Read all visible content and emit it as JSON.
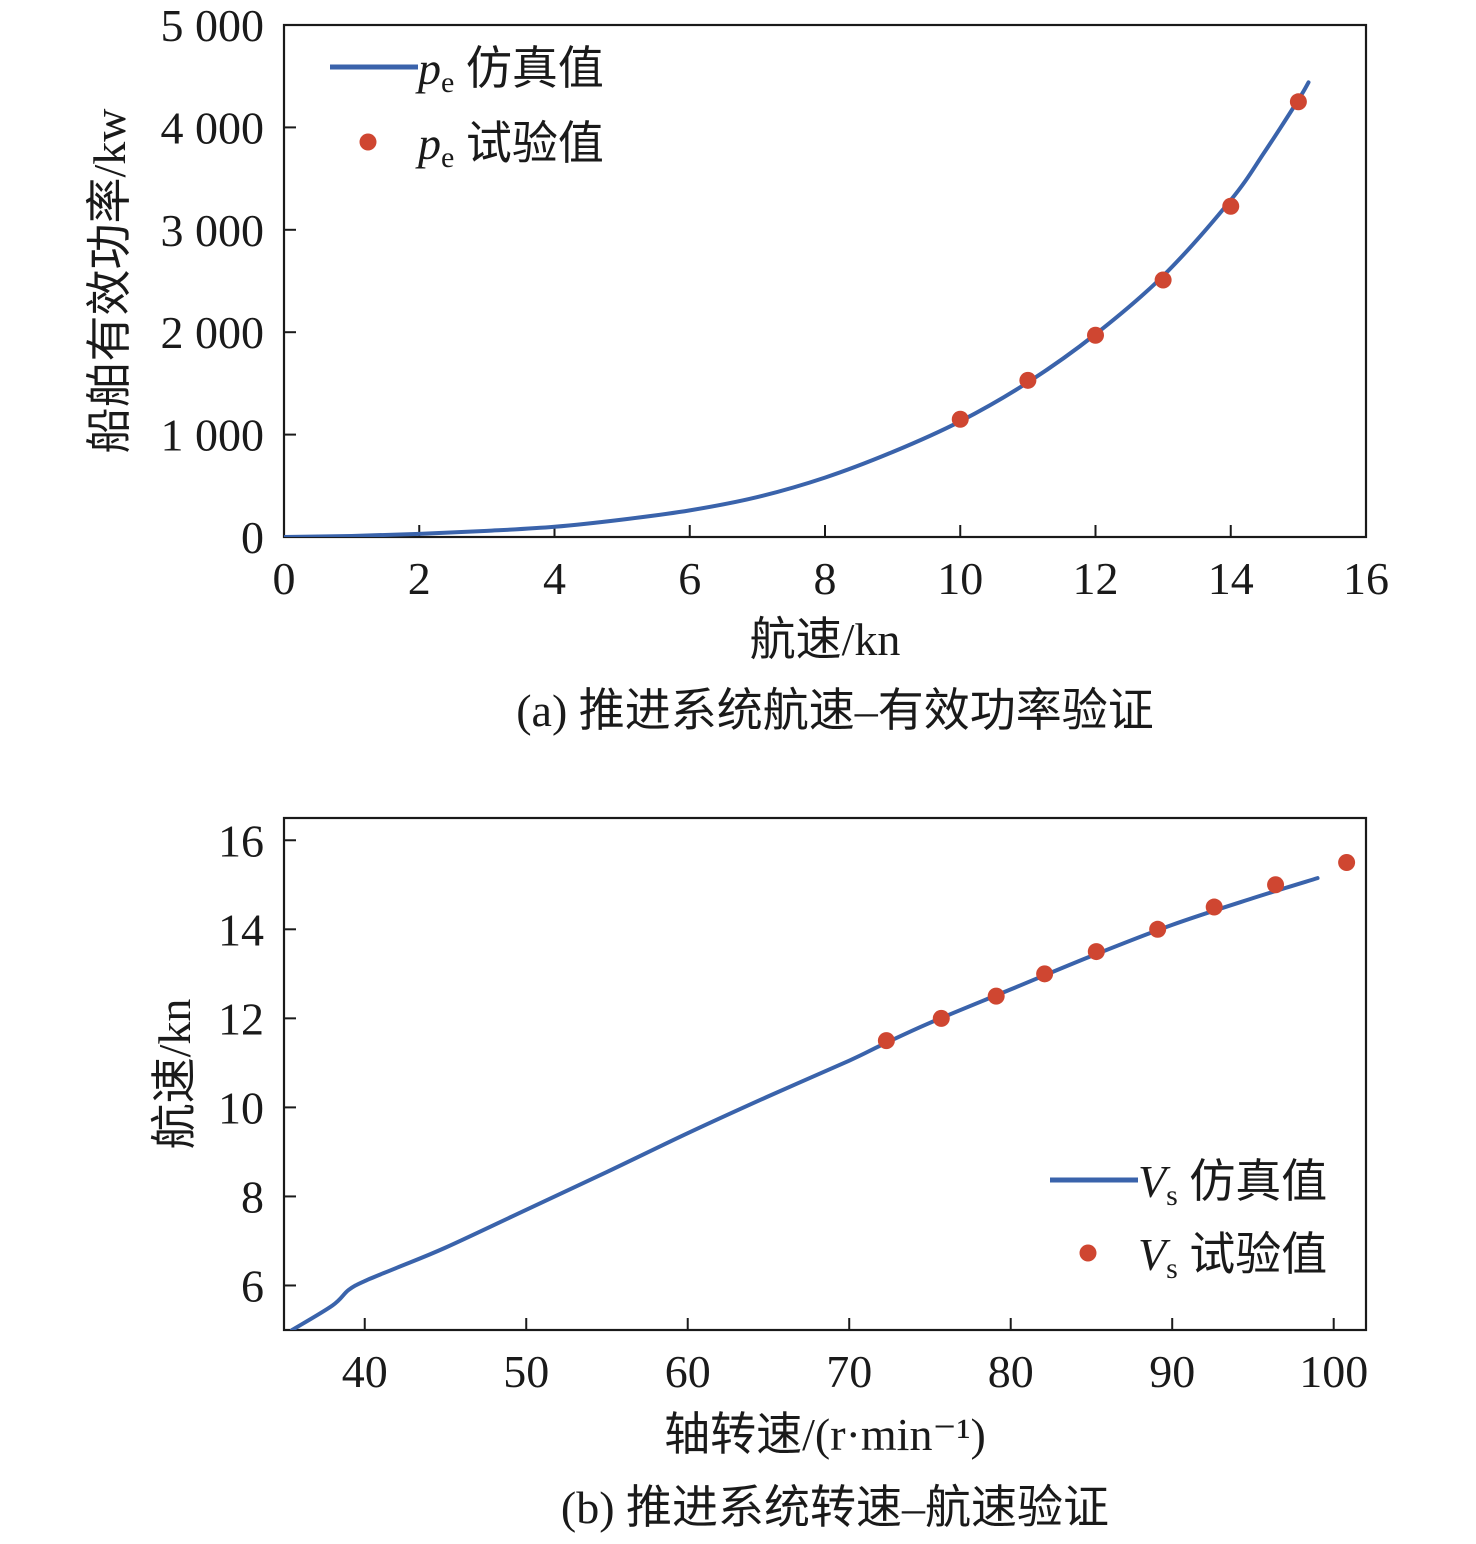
{
  "colors": {
    "line": "#3a63ab",
    "marker": "#cf4631",
    "axis": "#1a1a1a",
    "background": "#ffffff"
  },
  "chart_data": [
    {
      "type": "line",
      "caption": "(a) 推进系统航速–有效功率验证",
      "xlabel": "航速/kn",
      "ylabel": "船舶有效功率/kw",
      "xlim": [
        0,
        16
      ],
      "ylim": [
        0,
        5000
      ],
      "xticks": [
        0,
        2,
        4,
        6,
        8,
        10,
        12,
        14,
        16
      ],
      "xtick_labels": [
        "0",
        "2",
        "4",
        "6",
        "8",
        "10",
        "12",
        "14",
        "16"
      ],
      "yticks": [
        0,
        1000,
        2000,
        3000,
        4000,
        5000
      ],
      "ytick_labels": [
        "0",
        "1 000",
        "2 000",
        "3 000",
        "4 000",
        "5 000"
      ],
      "legend_position": "top-left",
      "grid": false,
      "series": [
        {
          "name_main": "p",
          "name_sub": "e",
          "name_suffix": "仿真值",
          "kind": "line",
          "x": [
            0,
            1,
            2,
            3,
            4,
            5,
            6,
            7,
            8,
            9,
            10,
            11,
            12,
            13,
            14,
            14.5,
            15,
            15.15
          ],
          "y": [
            0,
            10,
            30,
            60,
            100,
            170,
            260,
            390,
            580,
            830,
            1130,
            1510,
            1980,
            2550,
            3290,
            3760,
            4270,
            4440
          ]
        },
        {
          "name_main": "p",
          "name_sub": "e",
          "name_suffix": "试验值",
          "kind": "scatter",
          "x": [
            10,
            11,
            12,
            13,
            14,
            15
          ],
          "y": [
            1150,
            1530,
            1970,
            2510,
            3230,
            4250
          ]
        }
      ]
    },
    {
      "type": "line",
      "caption": "(b) 推进系统转速–航速验证",
      "xlabel": "轴转速/(r·min⁻¹)",
      "ylabel": "航速/kn",
      "xlim": [
        35,
        102
      ],
      "ylim": [
        5,
        16.5
      ],
      "xticks": [
        40,
        50,
        60,
        70,
        80,
        90,
        100
      ],
      "xtick_labels": [
        "40",
        "50",
        "60",
        "70",
        "80",
        "90",
        "100"
      ],
      "yticks": [
        6,
        8,
        10,
        12,
        14,
        16
      ],
      "ytick_labels": [
        "6",
        "8",
        "10",
        "12",
        "14",
        "16"
      ],
      "legend_position": "bottom-right",
      "grid": false,
      "series": [
        {
          "name_main": "V",
          "name_sub": "s",
          "name_suffix": "仿真值",
          "kind": "line",
          "x": [
            35.5,
            38,
            39,
            40,
            42,
            45,
            50,
            55,
            60,
            65,
            70,
            72,
            75,
            80,
            85,
            90,
            95,
            99
          ],
          "y": [
            5.0,
            5.55,
            5.9,
            6.1,
            6.4,
            6.85,
            7.7,
            8.55,
            9.42,
            10.25,
            11.05,
            11.4,
            11.9,
            12.65,
            13.4,
            14.1,
            14.7,
            15.15
          ]
        },
        {
          "name_main": "V",
          "name_sub": "s",
          "name_suffix": "试验值",
          "kind": "scatter",
          "x": [
            72.3,
            75.7,
            79.1,
            82.1,
            85.3,
            89.1,
            92.6,
            96.4,
            100.8
          ],
          "y": [
            11.5,
            12.0,
            12.5,
            13.0,
            13.5,
            14.0,
            14.5,
            15.0,
            15.5
          ]
        }
      ]
    }
  ]
}
